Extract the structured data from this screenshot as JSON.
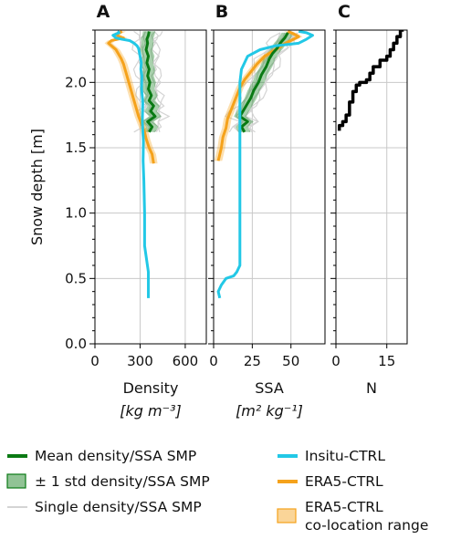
{
  "chart_data": [
    {
      "panel_label": "A",
      "type": "line",
      "xlabel_line1": "Density",
      "xlabel_line2": "[kg m⁻³]",
      "ylabel": "Snow depth [m]",
      "xlim": [
        0,
        740
      ],
      "ylim": [
        0.0,
        2.4
      ],
      "x_ticks": [
        0,
        300,
        600
      ],
      "y_ticks": [
        0.0,
        0.5,
        1.0,
        1.5,
        2.0
      ],
      "grid": true,
      "series": [
        {
          "name": "Insitu-CTRL",
          "color": "#22c8e6",
          "x": [
            355,
            355,
            330,
            330,
            325,
            320,
            322,
            315,
            318,
            310,
            312,
            305,
            308,
            300,
            295,
            290,
            280,
            260,
            230,
            180,
            140,
            120,
            140,
            160,
            150
          ],
          "y": [
            0.35,
            0.55,
            0.75,
            1.0,
            1.25,
            1.4,
            1.55,
            1.7,
            1.85,
            1.95,
            2.05,
            2.1,
            2.15,
            2.2,
            2.23,
            2.26,
            2.28,
            2.3,
            2.32,
            2.33,
            2.34,
            2.36,
            2.37,
            2.38,
            2.39
          ]
        },
        {
          "name": "ERA5-CTRL",
          "color": "#f5a21b",
          "x": [
            390,
            380,
            360,
            340,
            330,
            310,
            290,
            275,
            260,
            245,
            230,
            215,
            200,
            190,
            175,
            155,
            140,
            110,
            90,
            110,
            150,
            190,
            160,
            140,
            165,
            180
          ],
          "y": [
            1.38,
            1.45,
            1.5,
            1.57,
            1.62,
            1.68,
            1.74,
            1.8,
            1.86,
            1.92,
            1.98,
            2.04,
            2.1,
            2.14,
            2.18,
            2.22,
            2.25,
            2.28,
            2.3,
            2.32,
            2.33,
            2.34,
            2.35,
            2.37,
            2.38,
            2.39
          ]
        },
        {
          "name": "Mean density/SSA SMP",
          "color": "#0a7a14",
          "x": [
            360,
            380,
            350,
            400,
            370,
            390,
            360,
            375,
            355,
            365,
            350,
            360,
            345,
            355,
            340,
            350,
            345,
            355,
            360
          ],
          "y": [
            1.62,
            1.66,
            1.7,
            1.74,
            1.78,
            1.82,
            1.86,
            1.9,
            1.95,
            2.0,
            2.05,
            2.1,
            2.15,
            2.2,
            2.25,
            2.3,
            2.33,
            2.36,
            2.39
          ]
        }
      ]
    },
    {
      "panel_label": "B",
      "type": "line",
      "xlabel_line1": "SSA",
      "xlabel_line2": "[m² kg⁻¹]",
      "xlim": [
        0,
        72
      ],
      "ylim": [
        0.0,
        2.4
      ],
      "x_ticks": [
        0,
        25,
        50
      ],
      "grid": true,
      "series": [
        {
          "name": "Insitu-CTRL",
          "color": "#22c8e6",
          "x": [
            4,
            3,
            5,
            8,
            13,
            15,
            17,
            17,
            17,
            17,
            17,
            18,
            20,
            22,
            30,
            40,
            55,
            60,
            64,
            60,
            55
          ],
          "y": [
            0.35,
            0.4,
            0.45,
            0.5,
            0.52,
            0.55,
            0.6,
            1.0,
            1.5,
            1.8,
            2.0,
            2.1,
            2.15,
            2.2,
            2.25,
            2.28,
            2.3,
            2.33,
            2.36,
            2.38,
            2.39
          ]
        },
        {
          "name": "ERA5-CTRL",
          "color": "#f5a21b",
          "x": [
            3,
            5,
            6,
            8,
            9,
            11,
            13,
            15,
            17,
            20,
            24,
            28,
            33,
            40,
            45,
            50,
            55,
            52,
            48
          ],
          "y": [
            1.4,
            1.5,
            1.58,
            1.65,
            1.72,
            1.78,
            1.84,
            1.9,
            1.96,
            2.02,
            2.08,
            2.14,
            2.2,
            2.25,
            2.29,
            2.32,
            2.35,
            2.37,
            2.39
          ]
        },
        {
          "name": "Mean density/SSA SMP",
          "color": "#0a7a14",
          "x": [
            20,
            18,
            22,
            17,
            19,
            21,
            24,
            26,
            29,
            31,
            34,
            36,
            38,
            41,
            43,
            46,
            48
          ],
          "y": [
            1.62,
            1.66,
            1.7,
            1.74,
            1.78,
            1.82,
            1.88,
            1.94,
            2.0,
            2.06,
            2.12,
            2.18,
            2.22,
            2.26,
            2.3,
            2.34,
            2.38
          ]
        }
      ]
    },
    {
      "panel_label": "C",
      "type": "line",
      "xlabel_line1": "N",
      "xlim": [
        0,
        21
      ],
      "ylim": [
        0.0,
        2.4
      ],
      "x_ticks": [
        0,
        15
      ],
      "grid": true,
      "series": [
        {
          "name": "N",
          "color": "#000000",
          "step": true,
          "x": [
            1,
            2,
            3,
            4,
            5,
            6,
            7,
            9,
            10,
            11,
            13,
            15,
            16,
            17,
            18,
            19,
            20
          ],
          "y": [
            1.63,
            1.67,
            1.7,
            1.75,
            1.85,
            1.93,
            1.98,
            2.0,
            2.02,
            2.07,
            2.12,
            2.17,
            2.2,
            2.25,
            2.3,
            2.35,
            2.4
          ]
        }
      ]
    }
  ],
  "legend": {
    "items": [
      {
        "label": "Mean density/SSA SMP",
        "kind": "line",
        "color": "#0a7a14"
      },
      {
        "label": "± 1 std density/SSA SMP",
        "kind": "patch",
        "color": "#0a7a14"
      },
      {
        "label": "Single density/SSA SMP",
        "kind": "line",
        "color": "#d4d4d4"
      },
      {
        "label": "Insitu-CTRL",
        "kind": "line",
        "color": "#22c8e6"
      },
      {
        "label": "ERA5-CTRL",
        "kind": "line",
        "color": "#f5a21b"
      },
      {
        "label": "ERA5-CTRL",
        "label2": "co-location range",
        "kind": "patch",
        "color": "#f5a21b"
      }
    ]
  }
}
